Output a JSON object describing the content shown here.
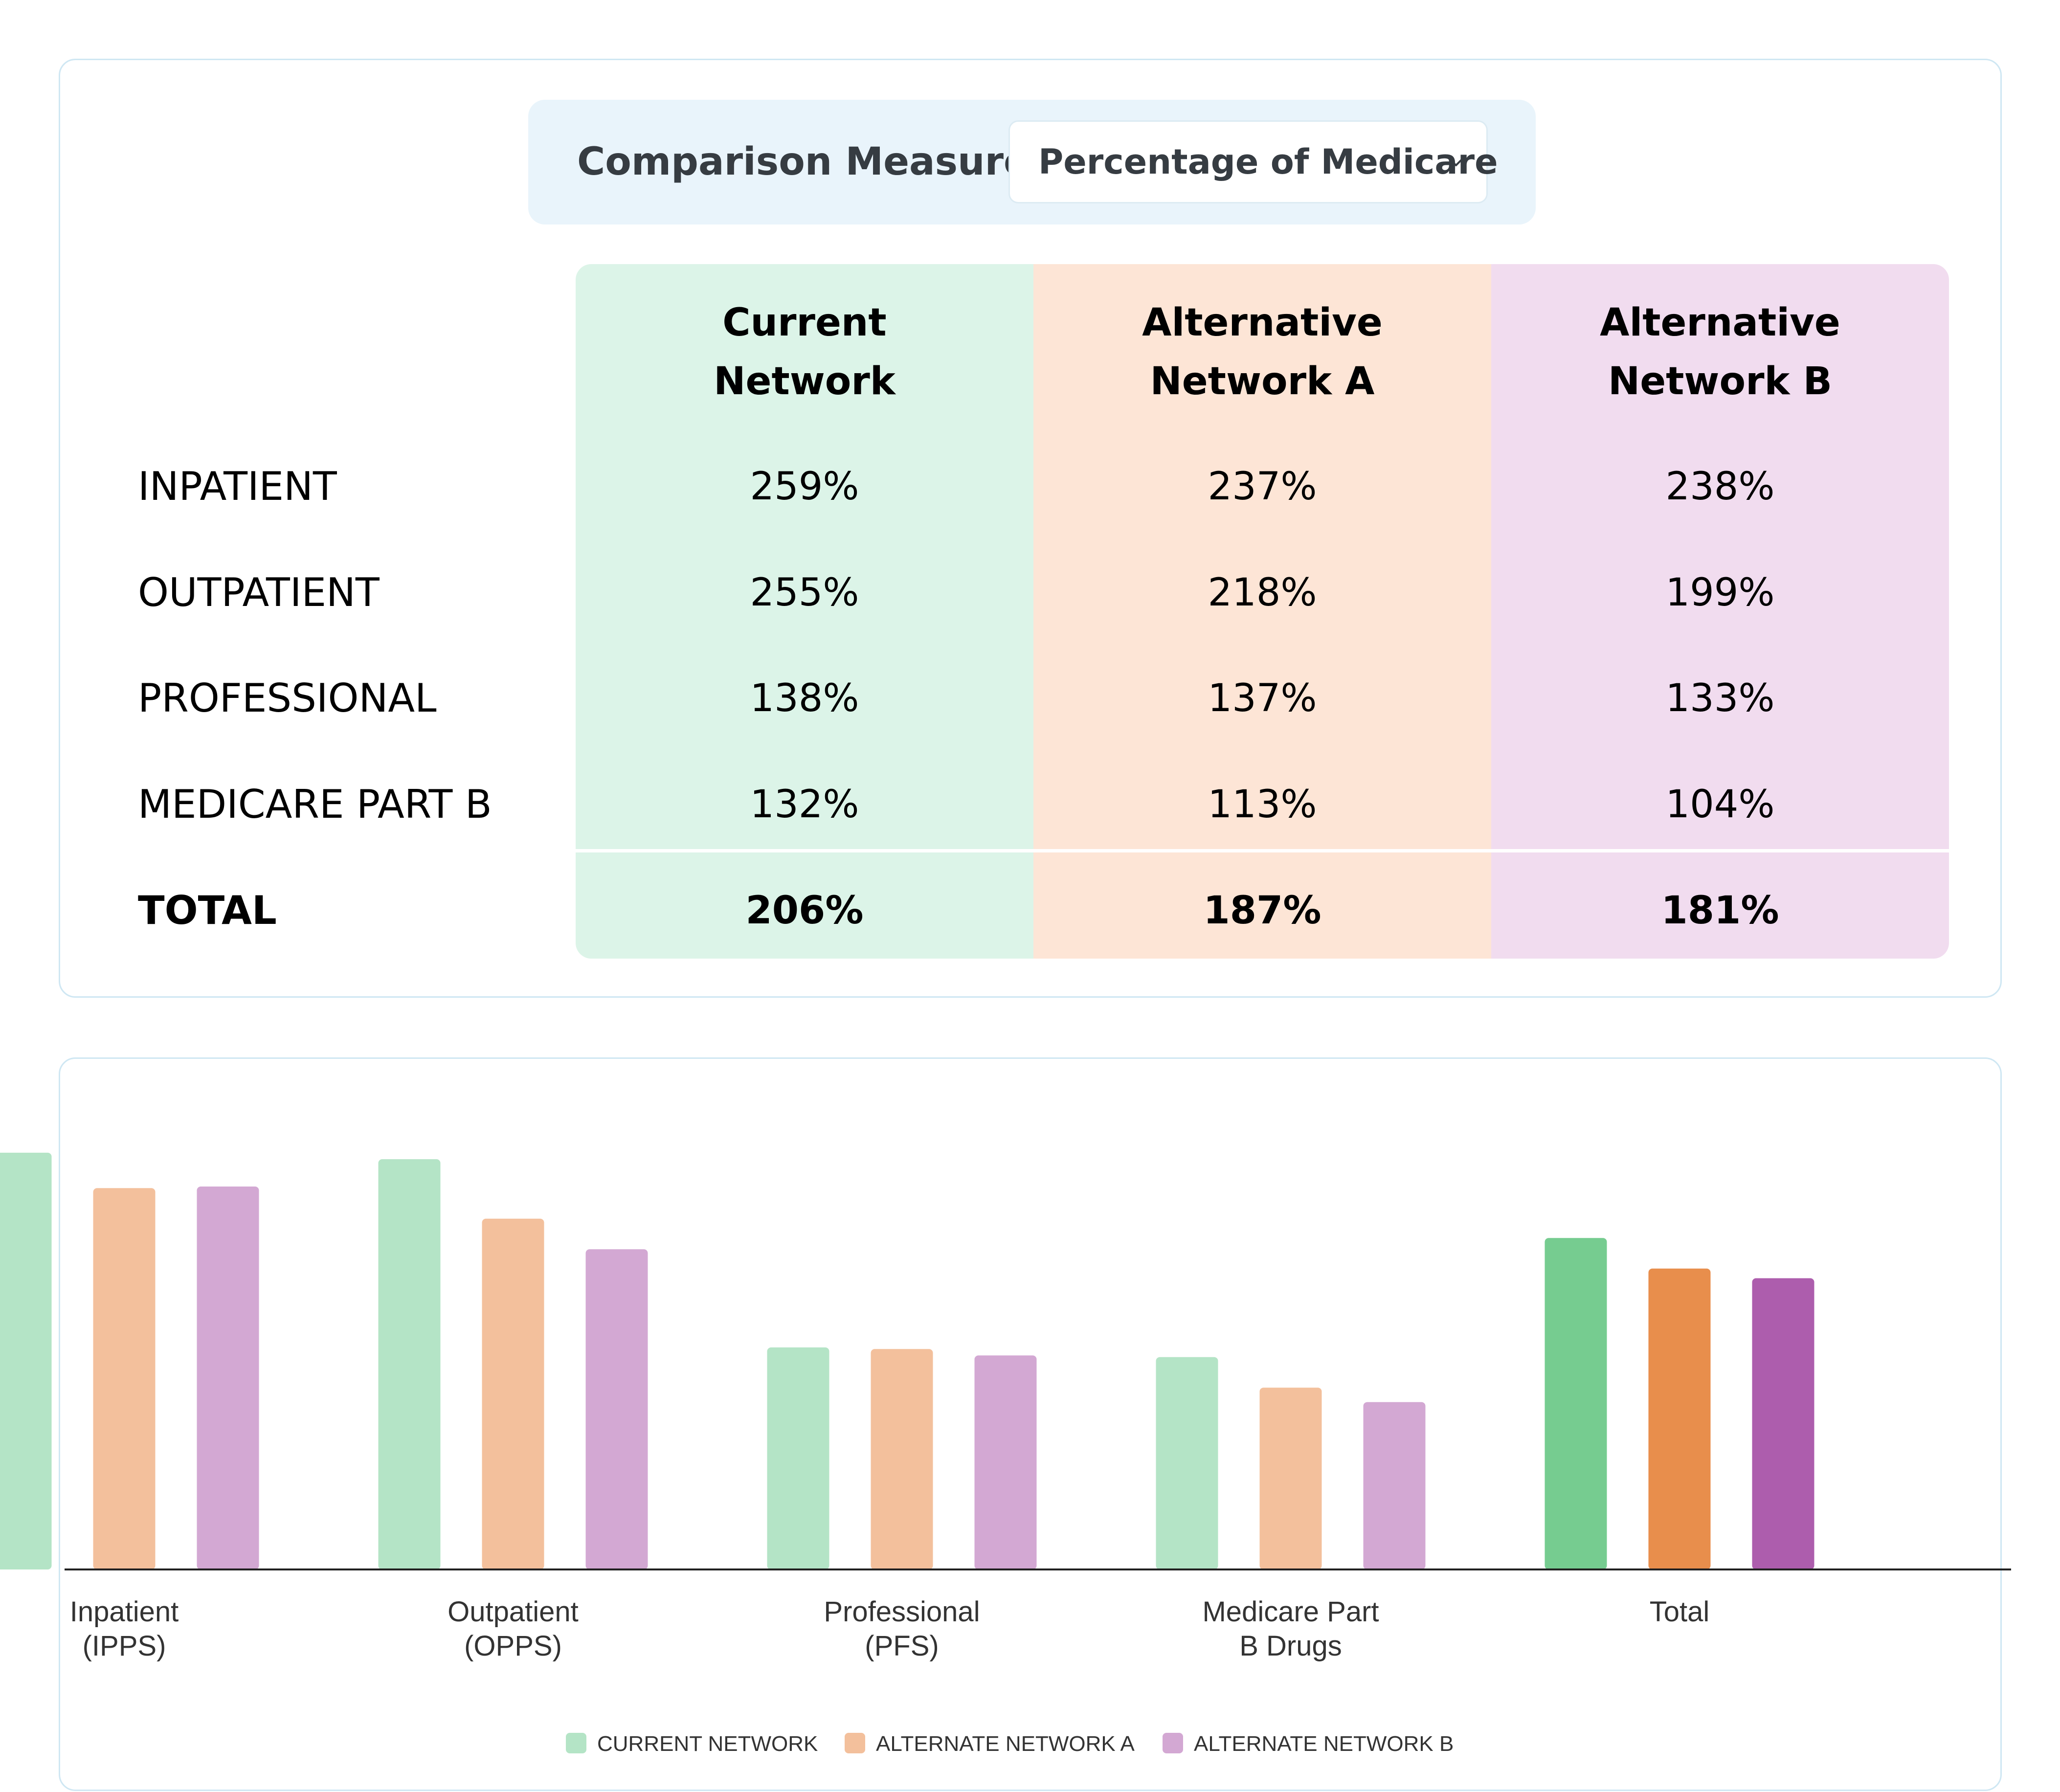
{
  "comparison": {
    "label": "Comparison Measure",
    "selected": "Percentage of Medicare",
    "icon": "chevron-down-icon"
  },
  "table": {
    "columns": [
      "Current\nNetwork",
      "Alternative\nNetwork A",
      "Alternative\nNetwork B"
    ],
    "column_colors": [
      "#dcf4e8",
      "#fde5d6",
      "#f1dcef"
    ],
    "rows": [
      {
        "label": "INPATIENT",
        "values": [
          "259%",
          "237%",
          "238%"
        ]
      },
      {
        "label": "OUTPATIENT",
        "values": [
          "255%",
          "218%",
          "199%"
        ]
      },
      {
        "label": "PROFESSIONAL",
        "values": [
          "138%",
          "137%",
          "133%"
        ]
      },
      {
        "label": "MEDICARE PART B",
        "values": [
          "132%",
          "113%",
          "104%"
        ]
      }
    ],
    "total": {
      "label": "TOTAL",
      "values": [
        "206%",
        "187%",
        "181%"
      ]
    }
  },
  "chart_data": {
    "type": "bar",
    "categories": [
      "Inpatient\n(IPPS)",
      "Outpatient\n(OPPS)",
      "Professional\n(PFS)",
      "Medicare Part\nB Drugs",
      "Total"
    ],
    "series": [
      {
        "name": "CURRENT NETWORK",
        "values": [
          259,
          255,
          138,
          132,
          206
        ],
        "color": "#b4e4c6",
        "total_color": "#76cc90"
      },
      {
        "name": "ALTERNATE NETWORK A",
        "values": [
          237,
          218,
          137,
          113,
          187
        ],
        "color": "#f3c09c",
        "total_color": "#e88e4c"
      },
      {
        "name": "ALTERNATE NETWORK B",
        "values": [
          238,
          199,
          133,
          104,
          181
        ],
        "color": "#d3a8d3",
        "total_color": "#ad5dad"
      }
    ],
    "ylim": [
      0,
      270
    ],
    "grid": false,
    "legend": "bottom-center",
    "title": "",
    "xlabel": "",
    "ylabel": ""
  }
}
